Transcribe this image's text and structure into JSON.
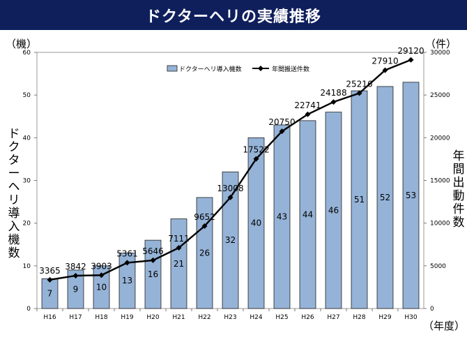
{
  "title": "ドクターヘリの実績推移",
  "left_unit": "（機）",
  "right_unit": "（件）",
  "x_unit": "（年度）",
  "chart_data": {
    "type": "bar",
    "categories": [
      "H16",
      "H17",
      "H18",
      "H19",
      "H20",
      "H21",
      "H22",
      "H23",
      "H24",
      "H25",
      "H26",
      "H27",
      "H28",
      "H29",
      "H30"
    ],
    "ylabel": "ドクターヘリ導入機数",
    "y2label": "年間出動件数",
    "ylim": [
      0,
      60
    ],
    "y2lim": [
      0,
      30000
    ],
    "yticks": [
      0,
      10,
      20,
      30,
      40,
      50,
      60
    ],
    "y2ticks": [
      0,
      5000,
      10000,
      15000,
      20000,
      25000,
      30000
    ],
    "legend_position": "top-left",
    "grid": false,
    "series": [
      {
        "name": "ドクターヘリ導入機数",
        "type": "bar",
        "color": "#95b3d7",
        "values": [
          7,
          9,
          10,
          13,
          16,
          21,
          26,
          32,
          40,
          43,
          44,
          46,
          51,
          52,
          53
        ]
      },
      {
        "name": "年間搬送件数",
        "type": "line",
        "axis": "right",
        "color": "#000000",
        "values": [
          3365,
          3842,
          3903,
          5361,
          5646,
          7111,
          9652,
          13008,
          17522,
          20750,
          22741,
          24188,
          25216,
          27910,
          29120
        ]
      }
    ]
  }
}
